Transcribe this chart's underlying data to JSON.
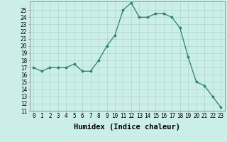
{
  "x": [
    0,
    1,
    2,
    3,
    4,
    5,
    6,
    7,
    8,
    9,
    10,
    11,
    12,
    13,
    14,
    15,
    16,
    17,
    18,
    19,
    20,
    21,
    22,
    23
  ],
  "y": [
    17,
    16.5,
    17,
    17,
    17,
    17.5,
    16.5,
    16.5,
    18,
    20,
    21.5,
    25,
    26,
    24,
    24,
    24.5,
    24.5,
    24,
    22.5,
    18.5,
    15,
    14.5,
    13,
    11.5
  ],
  "line_color": "#2e7d6e",
  "marker_color": "#2e7d6e",
  "bg_color": "#cceee8",
  "grid_color": "#aad8d0",
  "xlabel": "Humidex (Indice chaleur)",
  "xlim": [
    -0.5,
    23.5
  ],
  "ylim": [
    11,
    26.2
  ],
  "yticks": [
    11,
    12,
    13,
    14,
    15,
    16,
    17,
    18,
    19,
    20,
    21,
    22,
    23,
    24,
    25
  ],
  "xticks": [
    0,
    1,
    2,
    3,
    4,
    5,
    6,
    7,
    8,
    9,
    10,
    11,
    12,
    13,
    14,
    15,
    16,
    17,
    18,
    19,
    20,
    21,
    22,
    23
  ],
  "tick_fontsize": 5.5,
  "xlabel_fontsize": 7.5
}
